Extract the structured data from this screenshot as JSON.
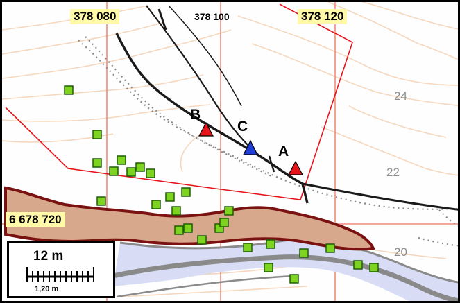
{
  "map": {
    "grid_labels": {
      "x_378080": "378 080",
      "x_378100": "378 100",
      "x_378120": "378 120",
      "y_6678720": "6 678 720"
    },
    "contour_labels": {
      "c24": "24",
      "c22": "22",
      "c20": "20"
    },
    "points": [
      {
        "name": "A",
        "color": "#e8141c"
      },
      {
        "name": "B",
        "color": "#e8141c"
      },
      {
        "name": "C",
        "color": "#1f3fd6"
      }
    ],
    "scalebar": {
      "main_label": "12 m",
      "sub_label": "1,20 m"
    },
    "colors": {
      "grid_line": "#f08a78",
      "parcel_line": "#e8141c",
      "contour": "#f5d7bd",
      "road_fill": "#d8ddf5",
      "road_edge": "#8a8a8a",
      "bank_fill": "#d7a88c",
      "bank_edge": "#7a1212",
      "marker_fill": "#7ed321",
      "marker_edge": "#1e5d0a"
    }
  }
}
